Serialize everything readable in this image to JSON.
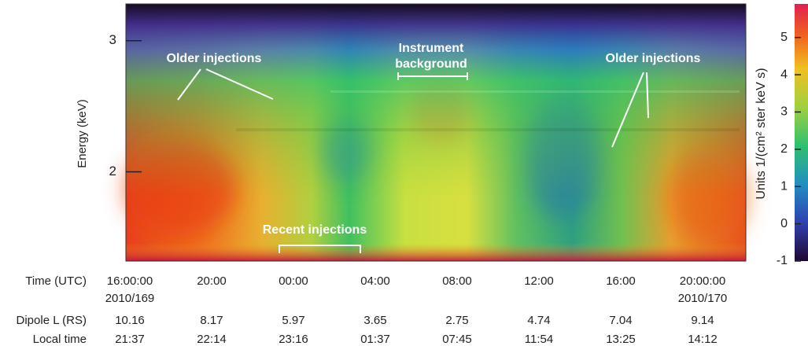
{
  "chart_data": {
    "type": "spectrogram",
    "ylabel": "Energy (keV)",
    "ylim": [
      1.32,
      3.28
    ],
    "yticks": [
      2,
      3
    ],
    "colorbar": {
      "label": "Units 1/(cm² ster keV s)",
      "lim": [
        -1,
        5.9
      ],
      "ticks": [
        -1,
        0,
        1,
        2,
        3,
        4,
        5
      ]
    },
    "x_rows": [
      {
        "label": "Time (UTC)",
        "values": [
          "16:00:00",
          "20:00",
          "00:00",
          "04:00",
          "08:00",
          "12:00",
          "16:00",
          "20:00:00"
        ],
        "dates": [
          "2010/169",
          null,
          null,
          null,
          null,
          null,
          null,
          "2010/170"
        ]
      },
      {
        "label": "Dipole L (RS)",
        "values": [
          10.16,
          8.17,
          5.97,
          3.65,
          2.75,
          4.74,
          7.04,
          9.14
        ]
      },
      {
        "label": "Local time",
        "values": [
          "21:37",
          "22:14",
          "23:16",
          "01:37",
          "07:45",
          "11:54",
          "13:25",
          "14:12"
        ]
      }
    ],
    "annotations": [
      {
        "lines": [
          "Older injections"
        ]
      },
      {
        "lines": [
          "Instrument",
          "background"
        ]
      },
      {
        "lines": [
          "Older injections"
        ]
      },
      {
        "lines": [
          "Recent injections"
        ]
      }
    ]
  }
}
